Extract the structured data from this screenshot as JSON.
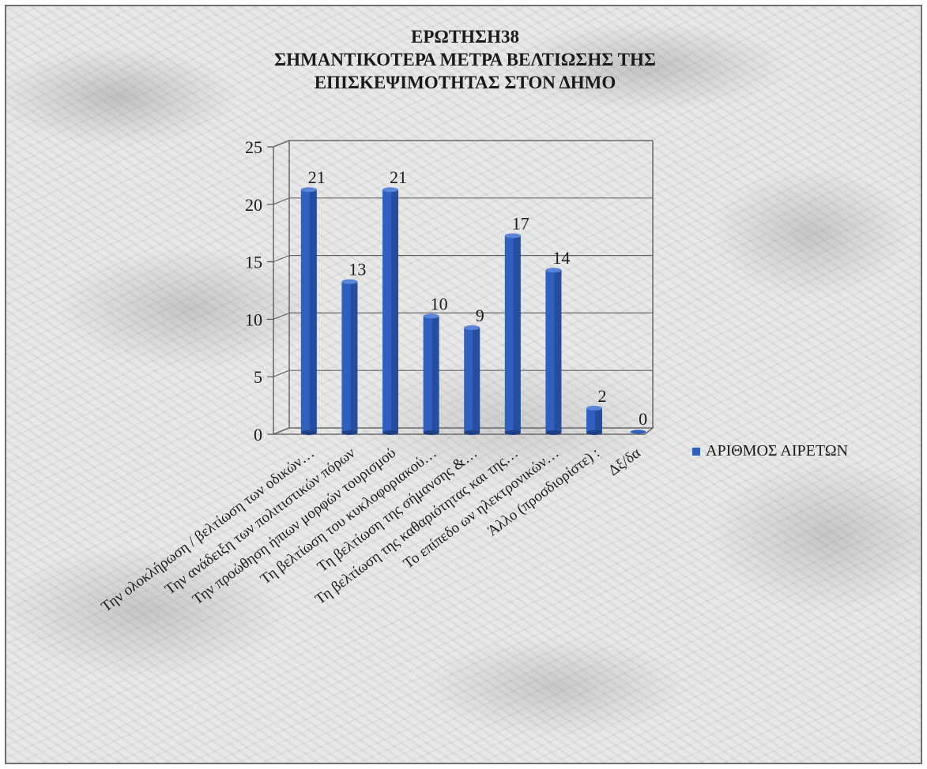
{
  "chart_data": {
    "type": "bar",
    "title_lines": [
      "ΕΡΩΤΗΣΗ38",
      "ΣΗΜΑΝΤΙΚΟΤΕΡΑ ΜΕΤΡΑ ΒΕΛΤΙΩΣΗΣ ΤΗΣ",
      "ΕΠΙΣΚΕΨΙΜΟΤΗΤΑΣ ΣΤΟΝ ΔΗΜΟ"
    ],
    "categories": [
      "Την ολοκλήρωση / βελτίωση των οδικών…",
      "Την ανάδειξη των πολιτιστικών πόρων",
      "Την προώθηση ήπιων μορφών τουρισμού",
      "Τη βελτίωση του κυκλοφοριακού…",
      "Τη βελτίωση της σήμανσης &…",
      "Τη βελτίωση της καθαριότητας και της…",
      "Το επίπεδο ων ηλεκτρονικών…",
      "Άλλο (προσδιορίστε) :",
      "Δξ/δα"
    ],
    "series": [
      {
        "name": "ΑΡΙΘΜΟΣ ΑΙΡΕΤΩΝ",
        "values": [
          21,
          13,
          21,
          10,
          9,
          17,
          14,
          2,
          0
        ],
        "color": "#2f5fbf"
      }
    ],
    "ylim": [
      0,
      25
    ],
    "yticks": [
      0,
      5,
      10,
      15,
      20,
      25
    ],
    "grid": true,
    "legend_position": "right"
  }
}
